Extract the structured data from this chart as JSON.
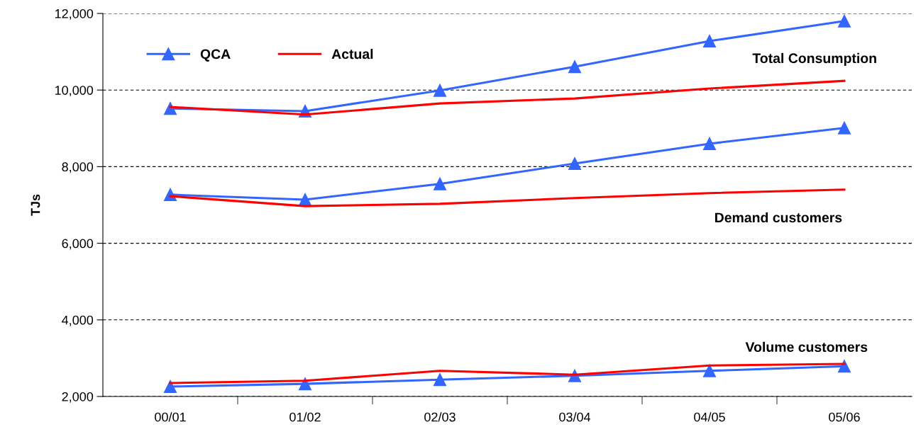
{
  "chart_data": {
    "type": "line",
    "ylabel": "TJs",
    "categories": [
      "00/01",
      "01/02",
      "02/03",
      "03/04",
      "04/05",
      "05/06"
    ],
    "ylim": [
      2000,
      12000
    ],
    "yticks": [
      {
        "value": 2000,
        "label": "2,000"
      },
      {
        "value": 4000,
        "label": "4,000"
      },
      {
        "value": 6000,
        "label": "6,000"
      },
      {
        "value": 8000,
        "label": "8,000"
      },
      {
        "value": 10000,
        "label": "10,000"
      },
      {
        "value": 12000,
        "label": "12,000"
      }
    ],
    "grid": "y",
    "legend": "top left",
    "series": [
      {
        "name": "QCA",
        "color": "#3366ff",
        "marker": "triangle",
        "values": [
          9520,
          9450,
          9990,
          10610,
          11280,
          11800
        ]
      },
      {
        "name": "Actual",
        "color": "#ff0000",
        "marker": "none",
        "values": [
          9560,
          9360,
          9650,
          9780,
          10040,
          10240
        ]
      },
      {
        "color": "#3366ff",
        "marker": "triangle",
        "values": [
          7270,
          7140,
          7550,
          8080,
          8600,
          9010
        ]
      },
      {
        "color": "#ff0000",
        "marker": "none",
        "values": [
          7230,
          6970,
          7030,
          7180,
          7310,
          7400
        ]
      },
      {
        "color": "#3366ff",
        "marker": "triangle",
        "values": [
          2260,
          2330,
          2440,
          2540,
          2670,
          2790
        ]
      },
      {
        "color": "#ff0000",
        "marker": "none",
        "values": [
          2350,
          2410,
          2670,
          2570,
          2810,
          2850
        ]
      }
    ],
    "annotations": [
      "Total Consumption",
      "Demand customers",
      "Volume customers"
    ]
  }
}
